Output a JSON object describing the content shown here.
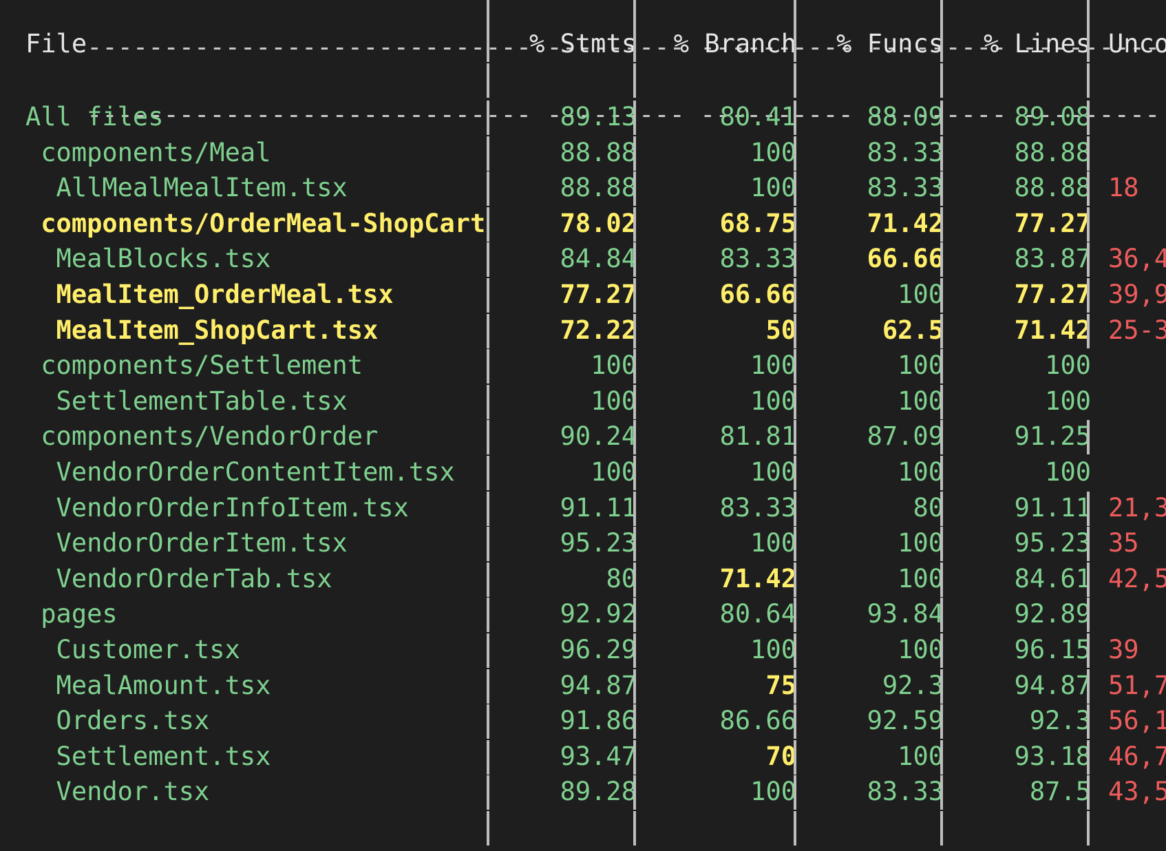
{
  "separator_rule": "-----------------------------|---------|----------|---------|---------|-----",
  "header": {
    "file": "File",
    "stmts": "% Stmts",
    "branch": "% Branch",
    "funcs": "% Funcs",
    "lines": "% Lines",
    "uncovered": "Unco"
  },
  "rows": [
    {
      "file": "All files",
      "stmts": "89.13",
      "branch": "80.41",
      "funcs": "88.09",
      "lines": "89.08",
      "uncovered": ""
    },
    {
      "file": " components/Meal",
      "stmts": "88.88",
      "branch": "100",
      "funcs": "83.33",
      "lines": "88.88",
      "uncovered": ""
    },
    {
      "file": "  AllMealMealItem.tsx",
      "stmts": "88.88",
      "branch": "100",
      "funcs": "83.33",
      "lines": "88.88",
      "uncovered": "18"
    },
    {
      "file": " components/OrderMeal-ShopCart",
      "stmts": "78.02",
      "branch": "68.75",
      "funcs": "71.42",
      "lines": "77.27",
      "uncovered": ""
    },
    {
      "file": "  MealBlocks.tsx",
      "stmts": "84.84",
      "branch": "83.33",
      "funcs": "66.66",
      "lines": "83.87",
      "uncovered": "36,4"
    },
    {
      "file": "  MealItem_OrderMeal.tsx",
      "stmts": "77.27",
      "branch": "66.66",
      "funcs": "100",
      "lines": "77.27",
      "uncovered": "39,9"
    },
    {
      "file": "  MealItem_ShopCart.tsx",
      "stmts": "72.22",
      "branch": "50",
      "funcs": "62.5",
      "lines": "71.42",
      "uncovered": "25-3"
    },
    {
      "file": " components/Settlement",
      "stmts": "100",
      "branch": "100",
      "funcs": "100",
      "lines": "100",
      "uncovered": ""
    },
    {
      "file": "  SettlementTable.tsx",
      "stmts": "100",
      "branch": "100",
      "funcs": "100",
      "lines": "100",
      "uncovered": ""
    },
    {
      "file": " components/VendorOrder",
      "stmts": "90.24",
      "branch": "81.81",
      "funcs": "87.09",
      "lines": "91.25",
      "uncovered": ""
    },
    {
      "file": "  VendorOrderContentItem.tsx",
      "stmts": "100",
      "branch": "100",
      "funcs": "100",
      "lines": "100",
      "uncovered": ""
    },
    {
      "file": "  VendorOrderInfoItem.tsx",
      "stmts": "91.11",
      "branch": "83.33",
      "funcs": "80",
      "lines": "91.11",
      "uncovered": "21,3"
    },
    {
      "file": "  VendorOrderItem.tsx",
      "stmts": "95.23",
      "branch": "100",
      "funcs": "100",
      "lines": "95.23",
      "uncovered": "35"
    },
    {
      "file": "  VendorOrderTab.tsx",
      "stmts": "80",
      "branch": "71.42",
      "funcs": "100",
      "lines": "84.61",
      "uncovered": "42,5"
    },
    {
      "file": " pages",
      "stmts": "92.92",
      "branch": "80.64",
      "funcs": "93.84",
      "lines": "92.89",
      "uncovered": ""
    },
    {
      "file": "  Customer.tsx",
      "stmts": "96.29",
      "branch": "100",
      "funcs": "100",
      "lines": "96.15",
      "uncovered": "39"
    },
    {
      "file": "  MealAmount.tsx",
      "stmts": "94.87",
      "branch": "75",
      "funcs": "92.3",
      "lines": "94.87",
      "uncovered": "51,7"
    },
    {
      "file": "  Orders.tsx",
      "stmts": "91.86",
      "branch": "86.66",
      "funcs": "92.59",
      "lines": "92.3",
      "uncovered": "56,1"
    },
    {
      "file": "  Settlement.tsx",
      "stmts": "93.47",
      "branch": "70",
      "funcs": "100",
      "lines": "93.18",
      "uncovered": "46,7"
    },
    {
      "file": "  Vendor.tsx",
      "stmts": "89.28",
      "branch": "100",
      "funcs": "83.33",
      "lines": "87.5",
      "uncovered": "43,5"
    }
  ],
  "colors": {
    "background": "#1e1e1e",
    "covered_green": "#7fd18f",
    "medium_yellow": "#ffee6a",
    "uncovered_red": "#ee5c5c",
    "text_default": "#e6e6e6"
  }
}
